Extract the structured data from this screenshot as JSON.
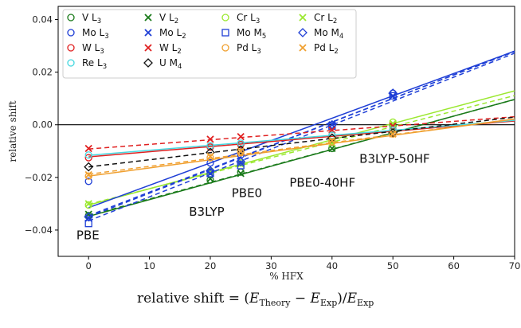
{
  "chart_data": {
    "type": "scatter",
    "xlabel": "% HFX",
    "ylabel": "relative shift",
    "xlim": [
      -5,
      70
    ],
    "ylim": [
      -0.05,
      0.045
    ],
    "xticks": [
      "0",
      "10",
      "20",
      "30",
      "40",
      "50",
      "60",
      "70"
    ],
    "yticks": [
      "0.04",
      "0.02",
      "0.00",
      "−0.02",
      "−0.04"
    ],
    "zero_line": true,
    "grid": false,
    "legend_position": "top-left",
    "x": [
      0,
      20,
      25,
      40,
      50
    ],
    "series": [
      {
        "name": "V L3",
        "color": "#1a7a1a",
        "marker": "circle",
        "values": [
          -0.0345,
          -0.021,
          -0.018,
          -0.009,
          -0.0005
        ],
        "fit": [
          -0.0348,
          0.000635
        ]
      },
      {
        "name": "V L2",
        "color": "#1a7a1a",
        "marker": "x",
        "values": [
          -0.034,
          -0.0205,
          -0.0185,
          -0.009,
          -0.0005
        ],
        "fit": [
          -0.0345,
          0.00063
        ]
      },
      {
        "name": "Cr L3",
        "color": "#9be830",
        "marker": "circle",
        "values": [
          -0.0305,
          -0.0175,
          -0.0145,
          -0.0065,
          0.001
        ],
        "fit": [
          -0.0305,
          0.00062
        ]
      },
      {
        "name": "Cr L2",
        "color": "#9be830",
        "marker": "x",
        "values": [
          -0.03,
          -0.018,
          -0.015,
          -0.007,
          0.0005
        ],
        "fit": [
          -0.0302,
          0.00059
        ]
      },
      {
        "name": "Mo L3",
        "color": "#1f3fd6",
        "marker": "circle",
        "values": [
          -0.0215,
          -0.0145,
          -0.0115,
          0.0,
          0.012
        ],
        "fit": [
          -0.0315,
          0.00085
        ]
      },
      {
        "name": "Mo L2",
        "color": "#1f3fd6",
        "marker": "x",
        "values": [
          -0.0355,
          -0.0185,
          -0.0145,
          0.0,
          0.011
        ],
        "fit": [
          -0.035,
          0.0009
        ]
      },
      {
        "name": "Mo M5",
        "color": "#1f3fd6",
        "marker": "square",
        "values": [
          -0.0375,
          -0.0185,
          -0.0155,
          -0.0005,
          0.011
        ],
        "fit": [
          -0.0365,
          0.00091
        ]
      },
      {
        "name": "Mo M4",
        "color": "#1f3fd6",
        "marker": "diamond",
        "values": [
          -0.035,
          -0.0175,
          -0.014,
          0.0,
          0.012
        ],
        "fit": [
          -0.0345,
          0.00089
        ]
      },
      {
        "name": "W L3",
        "color": "#e02020",
        "marker": "circle",
        "values": [
          -0.0125,
          -0.0085,
          -0.0075,
          -0.004,
          -0.002
        ],
        "fit": [
          -0.0122,
          0.000195
        ]
      },
      {
        "name": "W L2",
        "color": "#e02020",
        "marker": "x",
        "values": [
          -0.009,
          -0.0055,
          -0.0045,
          -0.002,
          -0.0005
        ],
        "fit": [
          -0.0092,
          0.000175
        ]
      },
      {
        "name": "Re L3",
        "color": "#45d8e0",
        "marker": "circle",
        "values": [
          -0.0115,
          -0.008,
          -0.007,
          -0.004,
          -0.002
        ],
        "fit": [
          -0.0116,
          0.00019
        ]
      },
      {
        "name": "U M4",
        "color": "#111111",
        "marker": "diamond",
        "values": [
          -0.016,
          -0.0105,
          -0.0095,
          -0.005,
          -0.003
        ],
        "fit": [
          -0.016,
          0.00027
        ]
      },
      {
        "name": "Pd L3",
        "color": "#f0a030",
        "marker": "circle",
        "values": [
          -0.0195,
          -0.0125,
          -0.0105,
          -0.0065,
          -0.0035
        ],
        "fit": [
          -0.0195,
          0.00031
        ]
      },
      {
        "name": "Pd L2",
        "color": "#f0a030",
        "marker": "x",
        "values": [
          -0.019,
          -0.012,
          -0.01,
          -0.006,
          -0.0035
        ],
        "fit": [
          -0.0188,
          0.0003
        ]
      }
    ],
    "legend_entries": [
      {
        "base": "V",
        "sub": "3",
        "edge": "L",
        "idx": 0
      },
      {
        "base": "V",
        "sub": "2",
        "edge": "L",
        "idx": 1
      },
      {
        "base": "Cr",
        "sub": "3",
        "edge": "L",
        "idx": 2
      },
      {
        "base": "Cr",
        "sub": "2",
        "edge": "L",
        "idx": 3
      },
      {
        "base": "Mo",
        "sub": "3",
        "edge": "L",
        "idx": 4
      },
      {
        "base": "Mo",
        "sub": "2",
        "edge": "L",
        "idx": 5
      },
      {
        "base": "Mo",
        "sub": "5",
        "edge": "M",
        "idx": 6
      },
      {
        "base": "Mo",
        "sub": "4",
        "edge": "M",
        "idx": 7
      },
      {
        "base": "W",
        "sub": "3",
        "edge": "L",
        "idx": 8
      },
      {
        "base": "W",
        "sub": "2",
        "edge": "L",
        "idx": 9
      },
      {
        "base": "Pd",
        "sub": "3",
        "edge": "L",
        "idx": 12
      },
      {
        "base": "Pd",
        "sub": "2",
        "edge": "L",
        "idx": 13
      },
      {
        "base": "Re",
        "sub": "3",
        "edge": "L",
        "idx": 10
      },
      {
        "base": "U",
        "sub": "4",
        "edge": "M",
        "idx": 11
      }
    ],
    "annotations": [
      {
        "text": "PBE",
        "x": -2,
        "y": -0.0435
      },
      {
        "text": "B3LYP",
        "x": 16.5,
        "y": -0.0345
      },
      {
        "text": "PBE0",
        "x": 23.5,
        "y": -0.0275
      },
      {
        "text": "PBE0-40HF",
        "x": 33,
        "y": -0.0235
      },
      {
        "text": "B3LYP-50HF",
        "x": 44.5,
        "y": -0.0145
      }
    ],
    "formula": {
      "lhs": "relative shift",
      "E": "E",
      "sub_theory": "Theory",
      "sub_exp": "Exp"
    }
  }
}
